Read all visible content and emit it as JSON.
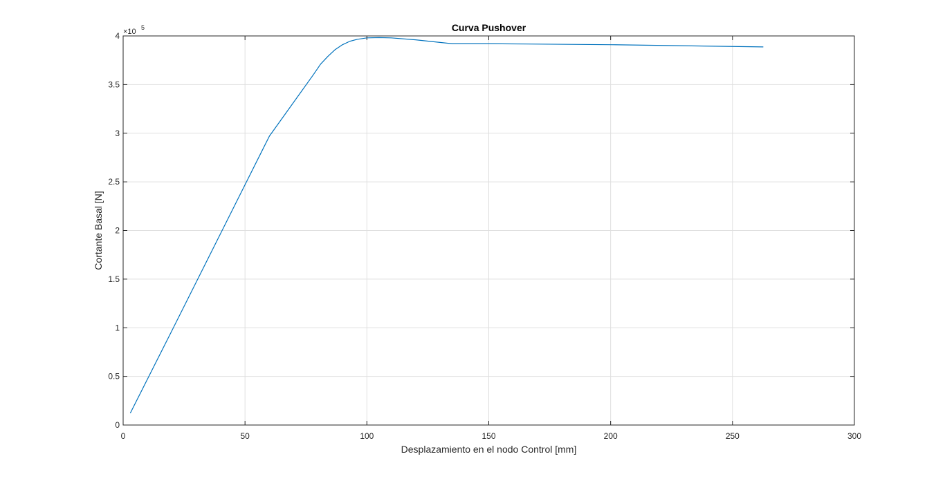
{
  "chart_data": {
    "type": "line",
    "title": "Curva Pushover",
    "xlabel": "Desplazamiento en el nodo Control [mm]",
    "ylabel": "Cortante Basal [N]",
    "xlim": [
      0,
      300
    ],
    "ylim": [
      0,
      400000
    ],
    "y_exponent_label": "×10",
    "y_exponent_power": "5",
    "grid": true,
    "x_ticks": [
      0,
      50,
      100,
      150,
      200,
      250,
      300
    ],
    "x_tick_labels": [
      "0",
      "50",
      "100",
      "150",
      "200",
      "250",
      "300"
    ],
    "y_ticks": [
      0,
      50000,
      100000,
      150000,
      200000,
      250000,
      300000,
      350000,
      400000
    ],
    "y_tick_labels": [
      "0",
      "0.5",
      "1",
      "1.5",
      "2",
      "2.5",
      "3",
      "3.5",
      "4"
    ],
    "series": [
      {
        "color": "#0072BD",
        "x": [
          3,
          20,
          40,
          60,
          78,
          81,
          84,
          87,
          90,
          93,
          96,
          100,
          105,
          110,
          120,
          135,
          150,
          200,
          262.5
        ],
        "y": [
          12500,
          97000,
          197000,
          297000,
          360000,
          371000,
          379000,
          386000,
          391000,
          394500,
          396500,
          398000,
          398300,
          398000,
          396000,
          392000,
          392000,
          391000,
          388700
        ]
      }
    ],
    "colors": {
      "axis": "#262626",
      "grid": "#dfdfdf",
      "line": "#0072BD"
    }
  }
}
